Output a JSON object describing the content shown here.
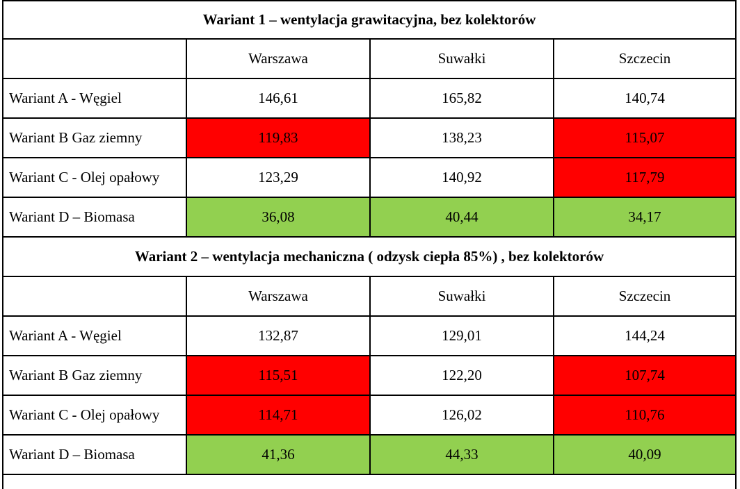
{
  "colors": {
    "red": "#ff0000",
    "green": "#92d050",
    "white": "#ffffff"
  },
  "cities": [
    "Warszawa",
    "Suwałki",
    "Szczecin"
  ],
  "sections": [
    {
      "title": "Wariant 1 – wentylacja grawitacyjna, bez kolektorów",
      "rows": [
        {
          "label": "Wariant A - Węgiel",
          "values": [
            "146,61",
            "165,82",
            "140,74"
          ],
          "colors": [
            "white",
            "white",
            "white"
          ]
        },
        {
          "label": "Wariant B  Gaz ziemny",
          "values": [
            "119,83",
            "138,23",
            "115,07"
          ],
          "colors": [
            "red",
            "white",
            "red"
          ]
        },
        {
          "label": "Wariant C - Olej opałowy",
          "values": [
            "123,29",
            "140,92",
            "117,79"
          ],
          "colors": [
            "white",
            "white",
            "red"
          ]
        },
        {
          "label": "Wariant D – Biomasa",
          "values": [
            "36,08",
            "40,44",
            "34,17"
          ],
          "colors": [
            "green",
            "green",
            "green"
          ]
        }
      ]
    },
    {
      "title": "Wariant 2 – wentylacja mechaniczna ( odzysk ciepła  85%) , bez kolektorów",
      "rows": [
        {
          "label": "Wariant A - Węgiel",
          "values": [
            "132,87",
            "129,01",
            "144,24"
          ],
          "colors": [
            "white",
            "white",
            "white"
          ]
        },
        {
          "label": "Wariant B  Gaz ziemny",
          "values": [
            "115,51",
            "122,20",
            "107,74"
          ],
          "colors": [
            "red",
            "white",
            "red"
          ]
        },
        {
          "label": "Wariant C - Olej opałowy",
          "values": [
            "114,71",
            "126,02",
            "110,76"
          ],
          "colors": [
            "red",
            "white",
            "red"
          ]
        },
        {
          "label": "Wariant D – Biomasa",
          "values": [
            "41,36",
            "44,33",
            "40,09"
          ],
          "colors": [
            "green",
            "green",
            "green"
          ]
        }
      ]
    }
  ]
}
